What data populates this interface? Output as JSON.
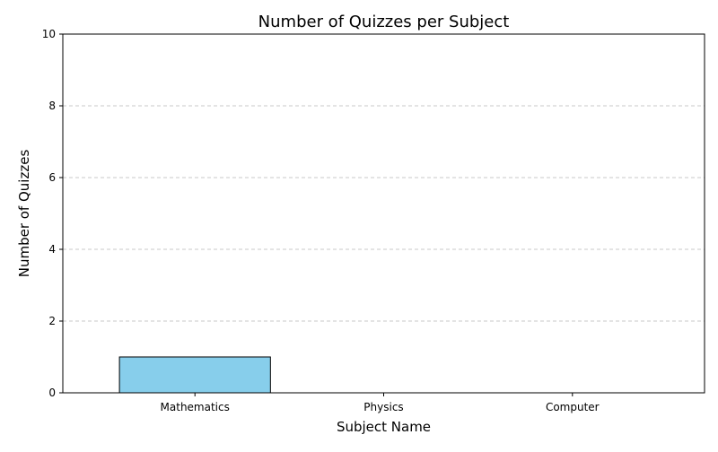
{
  "chart_data": {
    "type": "bar",
    "title": "Number of Quizzes per Subject",
    "xlabel": "Subject Name",
    "ylabel": "Number of Quizzes",
    "categories": [
      "Mathematics",
      "Physics",
      "Computer"
    ],
    "values": [
      1,
      0,
      0
    ],
    "ylim": [
      0,
      10
    ],
    "yticks": [
      "0",
      "2",
      "4",
      "6",
      "8",
      "10"
    ],
    "grid": "y-dashed",
    "legend": "none",
    "colors": {
      "bar_fill": "#87ceeb",
      "bar_edge": "#000000",
      "grid": "#c8c8c8",
      "axis": "#000000"
    }
  }
}
